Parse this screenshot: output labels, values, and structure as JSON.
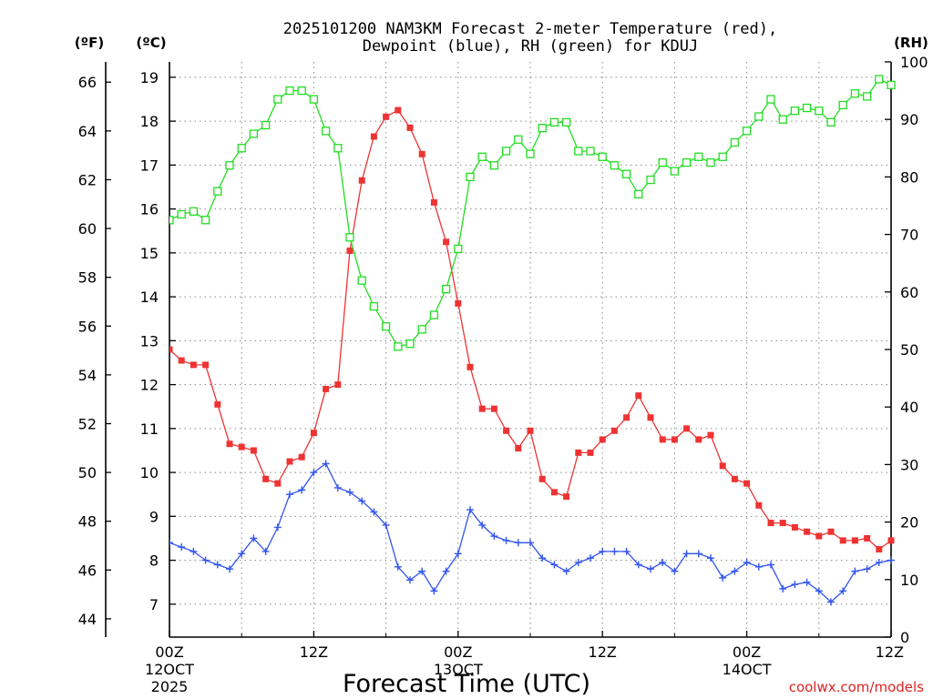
{
  "chart_data": {
    "type": "line",
    "title_line1": "2025101200 NAM3KM Forecast 2-meter Temperature (red),",
    "title_line2": "Dewpoint (blue), RH (green) for KDUJ",
    "xlabel": "Forecast Time (UTC)",
    "left_outer_unit": "(ºF)",
    "left_inner_unit": "(ºC)",
    "right_unit": "(RH)",
    "watermark": "coolwx.com/models",
    "hours_range": [
      0,
      60
    ],
    "ylim_c": [
      6.25,
      19.35
    ],
    "ylim_rh": [
      0,
      100
    ],
    "x_ticks": [
      {
        "hour": 0,
        "line1": "00Z",
        "line2": "12OCT",
        "line3": "2025"
      },
      {
        "hour": 12,
        "line1": "12Z",
        "line2": "",
        "line3": ""
      },
      {
        "hour": 24,
        "line1": "00Z",
        "line2": "13OCT",
        "line3": ""
      },
      {
        "hour": 36,
        "line1": "12Z",
        "line2": "",
        "line3": ""
      },
      {
        "hour": 48,
        "line1": "00Z",
        "line2": "14OCT",
        "line3": ""
      },
      {
        "hour": 60,
        "line1": "12Z",
        "line2": "",
        "line3": ""
      }
    ],
    "y_ticks_c": [
      "7",
      "8",
      "9",
      "10",
      "11",
      "12",
      "13",
      "14",
      "15",
      "16",
      "17",
      "18",
      "19"
    ],
    "y_ticks_f": [
      "44",
      "46",
      "48",
      "50",
      "52",
      "54",
      "56",
      "58",
      "60",
      "62",
      "64",
      "66"
    ],
    "y_ticks_rh": [
      "0",
      "10",
      "20",
      "30",
      "40",
      "50",
      "60",
      "70",
      "80",
      "90",
      "100"
    ],
    "series": [
      {
        "name": "2-meter Temperature",
        "unit": "C",
        "color": "#ee3333",
        "marker": "filled-square",
        "values": [
          12.8,
          12.55,
          12.45,
          12.45,
          11.55,
          10.65,
          10.58,
          10.5,
          9.85,
          9.75,
          10.25,
          10.35,
          10.9,
          11.9,
          12.0,
          15.05,
          16.65,
          17.65,
          18.1,
          18.25,
          17.85,
          17.25,
          16.15,
          15.25,
          13.85,
          12.4,
          11.45,
          11.45,
          10.95,
          10.55,
          10.95,
          9.85,
          9.55,
          9.45,
          10.45,
          10.45,
          10.75,
          10.95,
          11.25,
          11.75,
          11.25,
          10.75,
          10.75,
          11.0,
          10.75,
          10.85,
          10.15,
          9.85,
          9.75,
          9.25,
          8.85,
          8.85,
          8.75,
          8.65,
          8.55,
          8.65,
          8.45,
          8.45,
          8.5,
          8.25,
          8.45
        ]
      },
      {
        "name": "Dewpoint",
        "unit": "C",
        "color": "#3355ee",
        "marker": "plus",
        "values": [
          8.4,
          8.3,
          8.2,
          8.0,
          7.9,
          7.8,
          8.15,
          8.5,
          8.2,
          8.75,
          9.5,
          9.6,
          10.0,
          10.2,
          9.65,
          9.55,
          9.35,
          9.1,
          8.8,
          7.85,
          7.55,
          7.75,
          7.3,
          7.75,
          8.15,
          9.15,
          8.8,
          8.55,
          8.45,
          8.4,
          8.4,
          8.05,
          7.9,
          7.75,
          7.95,
          8.05,
          8.2,
          8.2,
          8.2,
          7.9,
          7.8,
          7.95,
          7.75,
          8.15,
          8.15,
          8.05,
          7.6,
          7.75,
          7.95,
          7.85,
          7.9,
          7.35,
          7.45,
          7.5,
          7.3,
          7.05,
          7.3,
          7.75,
          7.8,
          7.95,
          8.0
        ]
      },
      {
        "name": "RH",
        "unit": "%",
        "color": "#22dd22",
        "marker": "open-square",
        "values": [
          72.5,
          73.5,
          74,
          72.5,
          77.5,
          82,
          85,
          87.5,
          89,
          93.5,
          95,
          95,
          93.5,
          88,
          85,
          69.5,
          62,
          57.5,
          54,
          50.5,
          51,
          53.5,
          56,
          60.5,
          67.5,
          80,
          83.5,
          82,
          84.5,
          86.5,
          84,
          88.5,
          89.5,
          89.5,
          84.5,
          84.5,
          83.5,
          82,
          80.5,
          77,
          79.5,
          82.5,
          81,
          82.5,
          83.5,
          82.5,
          83.5,
          86,
          88,
          90.5,
          93.5,
          90,
          91.5,
          92,
          91.5,
          89.5,
          92.5,
          94.5,
          94,
          97,
          96
        ]
      }
    ]
  }
}
